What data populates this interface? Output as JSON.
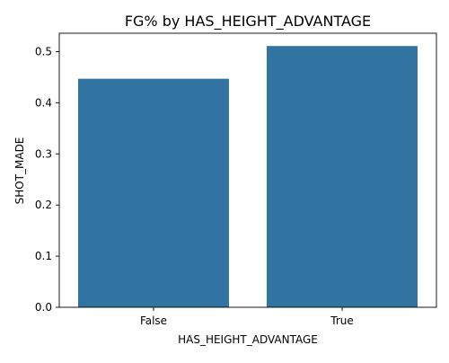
{
  "chart_data": {
    "type": "bar",
    "title": "FG% by HAS_HEIGHT_ADVANTAGE",
    "xlabel": "HAS_HEIGHT_ADVANTAGE",
    "ylabel": "SHOT_MADE",
    "categories": [
      "False",
      "True"
    ],
    "values": [
      0.447,
      0.511
    ],
    "ylim": [
      0,
      0.536
    ],
    "yticks": [
      0.0,
      0.1,
      0.2,
      0.3,
      0.4,
      0.5
    ],
    "ytick_labels": [
      "0.0",
      "0.1",
      "0.2",
      "0.3",
      "0.4",
      "0.5"
    ],
    "grid": false,
    "legend": "none",
    "bar_color": "#3274a1"
  }
}
